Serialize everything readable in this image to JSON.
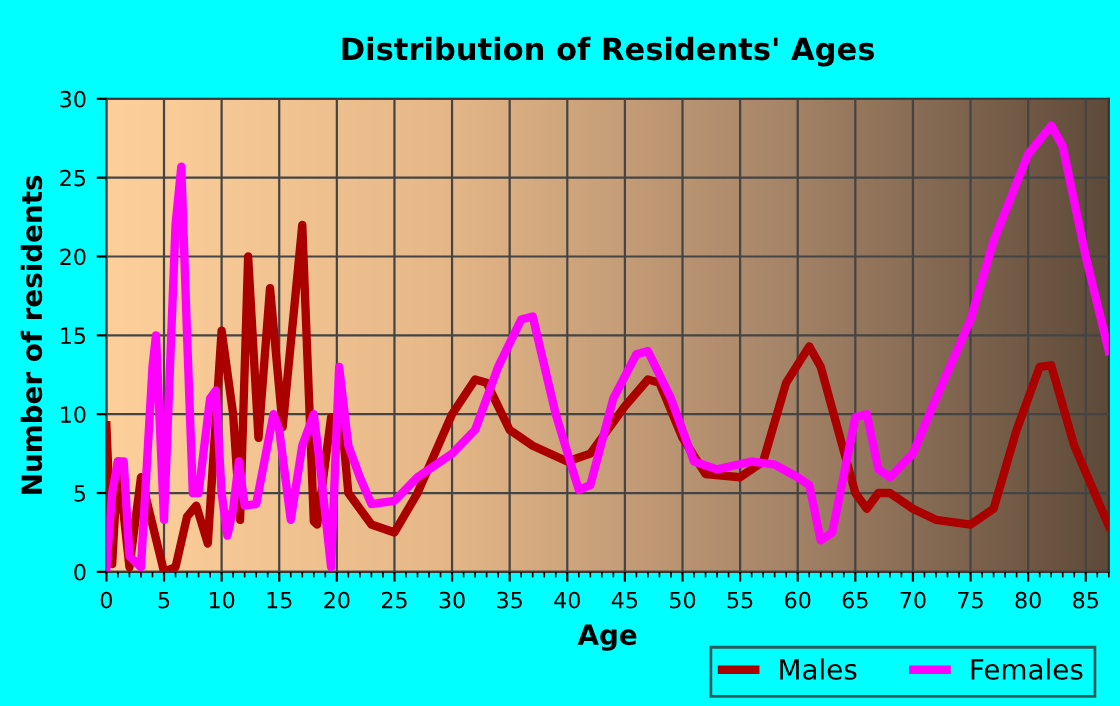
{
  "chart_data": {
    "type": "line",
    "title": "Distribution of Residents' Ages",
    "xlabel": "Age",
    "ylabel": "Number of residents",
    "xlim": [
      0,
      87
    ],
    "xticks": [
      0,
      5,
      10,
      15,
      20,
      25,
      30,
      35,
      40,
      45,
      50,
      55,
      60,
      65,
      70,
      75,
      80,
      85
    ],
    "ylim": [
      0,
      30
    ],
    "yticks": [
      0,
      5,
      10,
      15,
      20,
      25,
      30
    ],
    "grid": true,
    "legend": "bottom right",
    "marker": "none",
    "line_style": "solid",
    "series": [
      {
        "name": "Males",
        "color": "#aa0000",
        "x": [
          0,
          0.5,
          1,
          2,
          3,
          4,
          5,
          6,
          7,
          7.8,
          8.8,
          10,
          11,
          11.6,
          12.3,
          13.2,
          14.2,
          15.3,
          17,
          18,
          18.3,
          19.5,
          20.5,
          21,
          23,
          25,
          27,
          30,
          32,
          33,
          35,
          37,
          40,
          42,
          45,
          47,
          48,
          50,
          52,
          55,
          57,
          59,
          61,
          62,
          65,
          66,
          67,
          68,
          70,
          72,
          75,
          77,
          79,
          81,
          82,
          84,
          87
        ],
        "values": [
          9.3,
          0.5,
          7,
          0.3,
          6,
          3,
          0,
          0.3,
          3.5,
          4.2,
          1.8,
          15.3,
          10,
          3.3,
          20,
          8.5,
          18,
          9.2,
          22,
          3.2,
          3,
          9.8,
          9,
          5,
          3,
          2.5,
          5,
          10,
          12.2,
          12,
          9,
          8,
          7,
          7.5,
          10.5,
          12.2,
          12,
          8.5,
          6.2,
          6,
          7,
          12,
          14.3,
          13,
          5,
          4,
          5,
          5,
          4,
          3.3,
          3,
          4,
          9,
          13,
          13.1,
          8,
          2.9
        ]
      },
      {
        "name": "Females",
        "color": "#ff00ff",
        "x": [
          0,
          0.5,
          1,
          1.5,
          2,
          3,
          4,
          4.3,
          5,
          6,
          6.5,
          7,
          7.5,
          8,
          9,
          9.5,
          10,
          10.5,
          11,
          11.5,
          12,
          13,
          14.5,
          15,
          16,
          17,
          18,
          18.5,
          19.5,
          20.2,
          21,
          22,
          23,
          25,
          27,
          30,
          32,
          34,
          36,
          37,
          39,
          41,
          42,
          44,
          46,
          47,
          49,
          51,
          53,
          56,
          58,
          60,
          61,
          62,
          63,
          65,
          66,
          67,
          68,
          70,
          72,
          75,
          77,
          80,
          82,
          83,
          85,
          87
        ],
        "values": [
          0.3,
          5,
          7,
          7,
          1,
          0.3,
          13,
          15,
          3.3,
          22,
          25.7,
          15,
          5,
          5,
          11,
          11.5,
          5,
          2.3,
          4,
          7,
          4.2,
          4.3,
          10,
          9,
          3.3,
          8,
          10,
          7,
          0.3,
          13,
          8,
          6,
          4.3,
          4.5,
          6,
          7.5,
          9,
          13,
          16,
          16.2,
          10,
          5.2,
          5.5,
          11,
          13.8,
          14,
          11,
          7,
          6.5,
          7,
          6.8,
          6,
          5.5,
          2,
          2.5,
          9.8,
          10,
          6.5,
          6,
          7.5,
          11,
          16,
          21,
          26.5,
          28.3,
          27,
          20,
          14
        ]
      }
    ]
  }
}
